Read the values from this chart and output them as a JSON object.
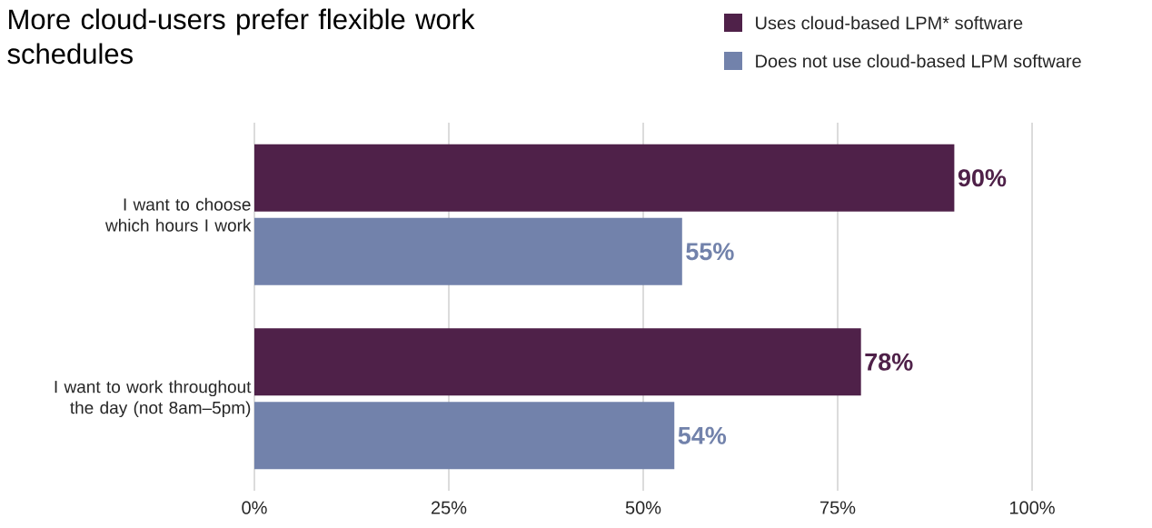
{
  "chart_data": {
    "type": "bar",
    "orientation": "horizontal",
    "title": "More cloud-users prefer flexible work schedules",
    "categories": [
      "I want to choose which hours I work",
      "I want to work throughout the day (not 8am–5pm)"
    ],
    "series": [
      {
        "name": "Uses cloud-based LPM* software",
        "color": "#4f2149",
        "values": [
          90,
          78
        ],
        "value_labels": [
          "90%",
          "78%"
        ]
      },
      {
        "name": "Does not use cloud-based LPM software",
        "color": "#7282ab",
        "values": [
          55,
          54
        ],
        "value_labels": [
          "55%",
          "54%"
        ]
      }
    ],
    "xlim": [
      0,
      100
    ],
    "xticks": [
      {
        "value": 0,
        "label": "0%"
      },
      {
        "value": 25,
        "label": "25%"
      },
      {
        "value": 50,
        "label": "50%"
      },
      {
        "value": 75,
        "label": "75%"
      },
      {
        "value": 100,
        "label": "100%"
      }
    ],
    "grid": "x",
    "legend": "top right"
  }
}
